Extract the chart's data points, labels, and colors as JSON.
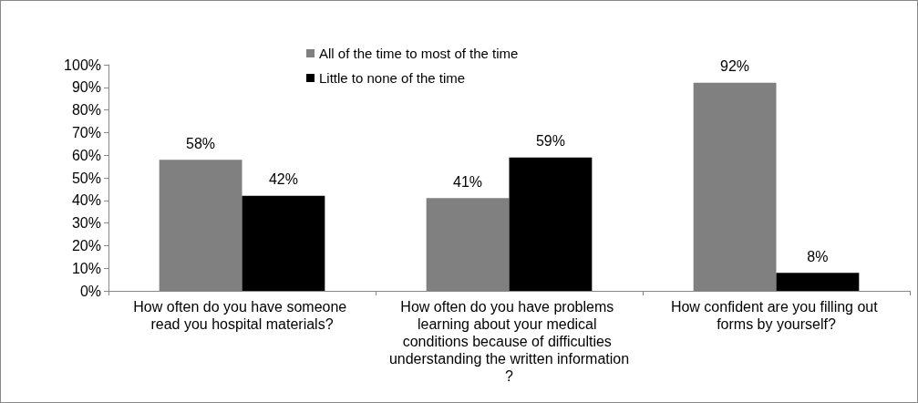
{
  "chart_data": {
    "type": "bar",
    "categories": [
      "How often do you have someone read you hospital materials?",
      "How often do you have problems learning about your medical conditions because of difficulties understanding the written information?",
      "How confident are you filling out forms by yourself?"
    ],
    "series": [
      {
        "name": "All of the time to most of the time",
        "color": "#808080",
        "values": [
          58,
          41,
          92
        ],
        "value_labels": [
          "58%",
          "41%",
          "92%"
        ]
      },
      {
        "name": "Little to none of the time",
        "color": "#000000",
        "values": [
          42,
          59,
          8
        ],
        "value_labels": [
          "42%",
          "59%",
          "8%"
        ]
      }
    ],
    "ylim": [
      0,
      100
    ],
    "yticks": [
      {
        "value": 0,
        "label": "0%"
      },
      {
        "value": 10,
        "label": "10%"
      },
      {
        "value": 20,
        "label": "20%"
      },
      {
        "value": 30,
        "label": "30%"
      },
      {
        "value": 40,
        "label": "40%"
      },
      {
        "value": 50,
        "label": "50%"
      },
      {
        "value": 60,
        "label": "60%"
      },
      {
        "value": 70,
        "label": "70%"
      },
      {
        "value": 80,
        "label": "80%"
      },
      {
        "value": 90,
        "label": "90%"
      },
      {
        "value": 100,
        "label": "100%"
      }
    ],
    "grid": false,
    "legend": "top"
  }
}
